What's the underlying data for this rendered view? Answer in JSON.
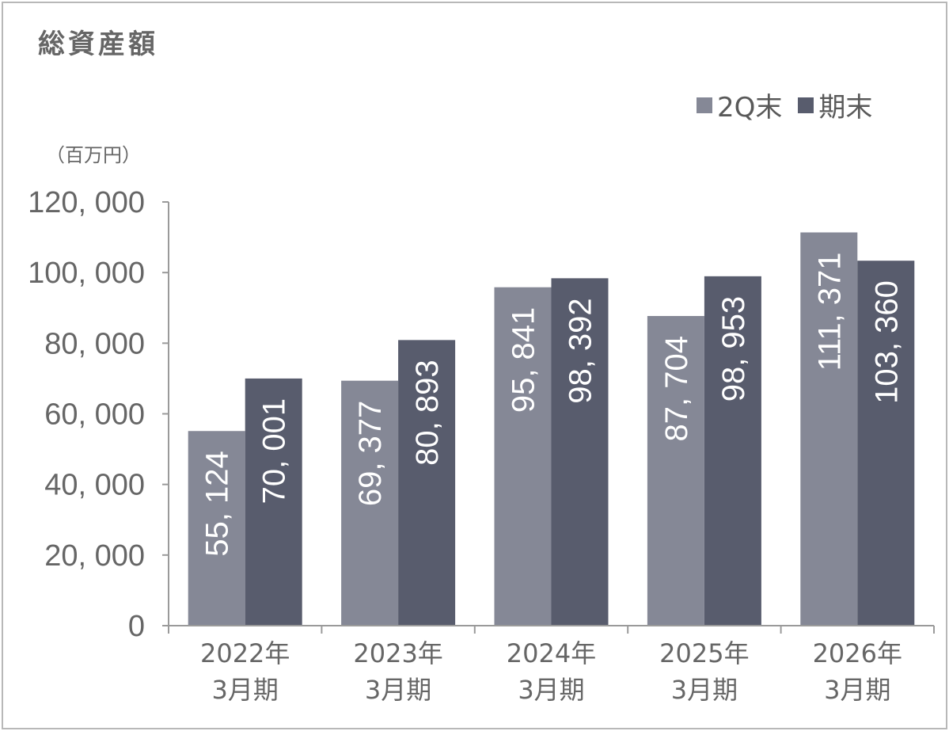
{
  "chart_data": {
    "type": "bar",
    "title": "総資産額",
    "unit_label": "（百万円）",
    "categories": [
      [
        "2022年",
        "3月期"
      ],
      [
        "2023年",
        "3月期"
      ],
      [
        "2024年",
        "3月期"
      ],
      [
        "2025年",
        "3月期"
      ],
      [
        "2026年",
        "3月期"
      ]
    ],
    "series": [
      {
        "name": "2Q末",
        "color": "#858896",
        "values": [
          55124,
          69377,
          95841,
          87704,
          111371
        ],
        "labels": [
          "55, 124",
          "69, 377",
          "95, 841",
          "87, 704",
          "111, 371"
        ]
      },
      {
        "name": "期末",
        "color": "#585c6d",
        "values": [
          70001,
          80893,
          98392,
          98953,
          103360
        ],
        "labels": [
          "70, 001",
          "80, 893",
          "98, 392",
          "98, 953",
          "103, 360"
        ]
      }
    ],
    "ylim": [
      0,
      120000
    ],
    "yticks": [
      0,
      20000,
      40000,
      60000,
      80000,
      100000,
      120000
    ],
    "ytick_labels": [
      "0",
      "20, 000",
      "40, 000",
      "60, 000",
      "80, 000",
      "100, 000",
      "120, 000"
    ],
    "grid": false,
    "legend_position": "top-right"
  }
}
